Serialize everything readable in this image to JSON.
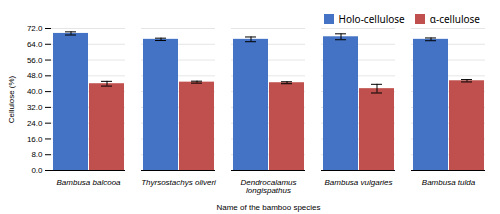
{
  "chart_data": {
    "type": "bar",
    "categories": [
      "Bambusa balcooa",
      "Thyrsostachys oliveri",
      "Dendrocalamus\nlongispathus",
      "Bambusa vulgaries",
      "Bambusa tulda"
    ],
    "series": [
      {
        "name": "Holo-cellulose",
        "color": "#4472C4",
        "values": [
          69.5,
          66.5,
          66.5,
          67.8,
          66.5
        ],
        "errors": [
          0.8,
          0.6,
          1.2,
          1.5,
          0.7
        ]
      },
      {
        "name": "α-cellulose",
        "color": "#C0504D",
        "values": [
          44.0,
          44.8,
          44.5,
          41.5,
          45.5
        ],
        "errors": [
          1.2,
          0.5,
          0.5,
          2.2,
          0.6
        ]
      }
    ],
    "ylabel": "Cellulose (%)",
    "xlabel": "Name of the bamboo species",
    "ylim": [
      0,
      72
    ],
    "yticks": [
      {
        "value": 0,
        "label": "0.0"
      },
      {
        "value": 8,
        "label": "8.0"
      },
      {
        "value": 16,
        "label": "16.0"
      },
      {
        "value": 24,
        "label": "24.0"
      },
      {
        "value": 32,
        "label": "32.0"
      },
      {
        "value": 40,
        "label": "40.0"
      },
      {
        "value": 48,
        "label": "48.0"
      },
      {
        "value": 56,
        "label": "56.0"
      },
      {
        "value": 64,
        "label": "64.0"
      },
      {
        "value": 72,
        "label": "72.0"
      }
    ],
    "grid": true,
    "legend": "upper right"
  }
}
